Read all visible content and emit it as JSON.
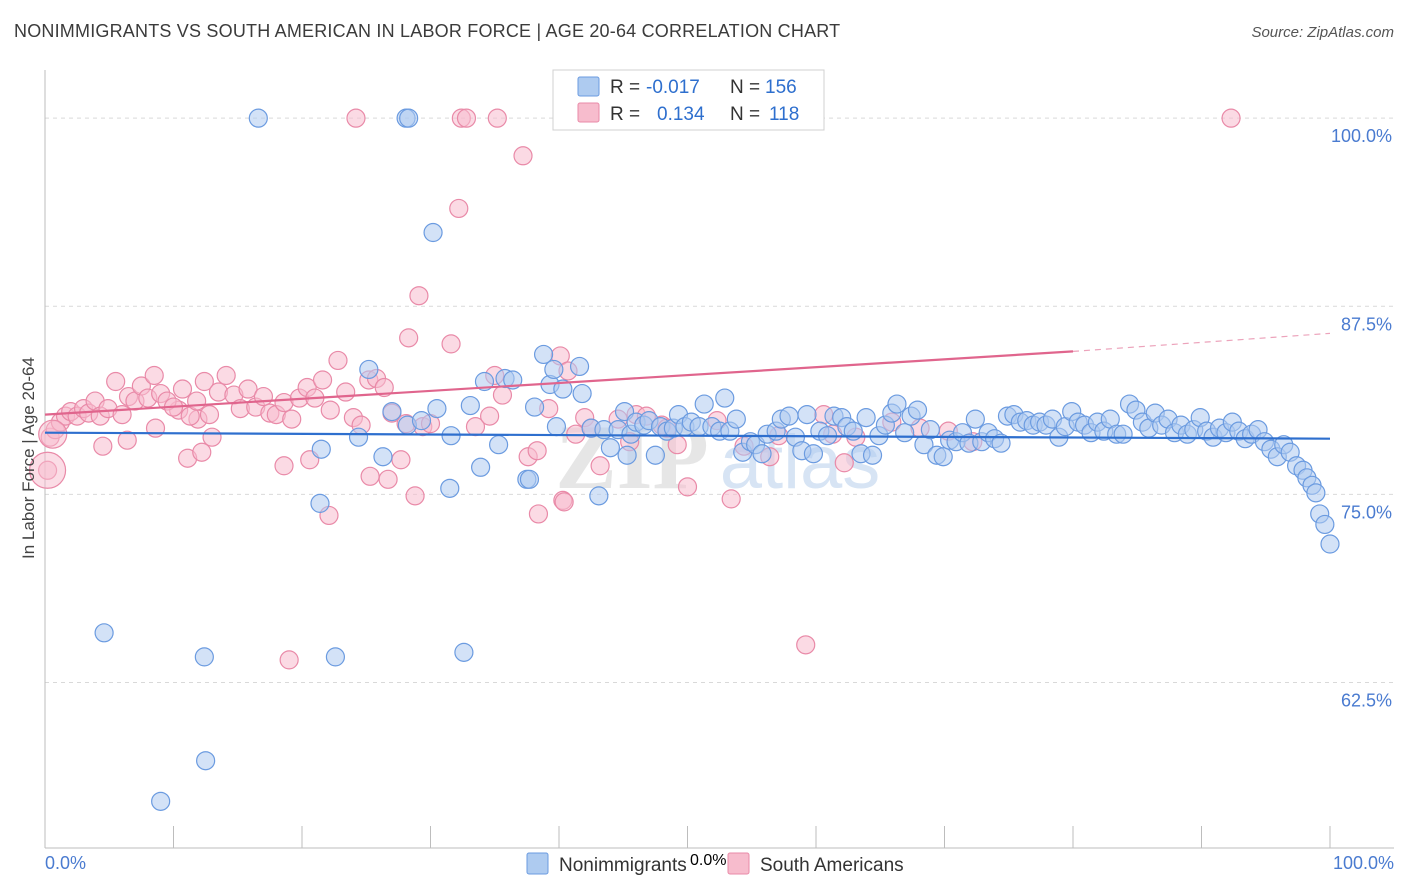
{
  "title": "NONIMMIGRANTS VS SOUTH AMERICAN IN LABOR FORCE | AGE 20-64 CORRELATION CHART",
  "source": "Source: ZipAtlas.com",
  "watermark": {
    "zip": "ZIP",
    "atlas": "atlas"
  },
  "colors": {
    "blue_fill": "#aecbf0",
    "blue_stroke": "#6b9be0",
    "blue_line": "#2e6fce",
    "pink_fill": "#f7bccd",
    "pink_stroke": "#e98aa8",
    "pink_line": "#e0658d",
    "tick_text": "#4a7bd0",
    "grid": "#d9d9d9"
  },
  "legend_box": {
    "rows": [
      {
        "r_label": "R =",
        "r_value": "-0.017",
        "n_label": "N =",
        "n_value": "156"
      },
      {
        "r_label": "R =",
        "r_value": "0.134",
        "n_label": "N =",
        "n_value": "118"
      }
    ]
  },
  "chart_data": {
    "type": "scatter",
    "title": "NONIMMIGRANTS VS SOUTH AMERICAN IN LABOR FORCE | AGE 20-64 CORRELATION CHART",
    "xlabel": "",
    "ylabel": "In Labor Force | Age 20-64",
    "xlim": [
      0,
      100
    ],
    "ylim": [
      51.5,
      103.2
    ],
    "x_tick_labels": [
      "0.0%",
      "100.0%"
    ],
    "y_ticks": [
      100,
      87.5,
      75,
      62.5
    ],
    "y_tick_labels": [
      "100.0%",
      "87.5%",
      "75.0%",
      "62.5%"
    ],
    "grid": true,
    "legend_position": "bottom",
    "series": [
      {
        "name": "Nonimmigrants",
        "R": -0.017,
        "N": 156,
        "trend": {
          "x0": 0,
          "y0": 79.1,
          "x1": 100,
          "y1": 78.7
        },
        "points": [
          [
            16.6,
            100
          ],
          [
            28.1,
            100
          ],
          [
            28.3,
            100
          ],
          [
            30.2,
            92.4
          ],
          [
            4.6,
            65.8
          ],
          [
            12.4,
            64.2
          ],
          [
            22.6,
            64.2
          ],
          [
            32.6,
            64.5
          ],
          [
            12.5,
            57.3
          ],
          [
            9.0,
            54.6
          ],
          [
            21.5,
            78.0
          ],
          [
            21.4,
            74.4
          ],
          [
            24.4,
            78.8
          ],
          [
            25.2,
            83.3
          ],
          [
            26.3,
            77.5
          ],
          [
            27.0,
            80.5
          ],
          [
            28.2,
            79.6
          ],
          [
            29.3,
            79.9
          ],
          [
            30.5,
            80.7
          ],
          [
            31.5,
            75.4
          ],
          [
            31.6,
            78.9
          ],
          [
            33.1,
            80.9
          ],
          [
            33.9,
            76.8
          ],
          [
            34.2,
            82.5
          ],
          [
            35.3,
            78.3
          ],
          [
            35.8,
            82.7
          ],
          [
            36.4,
            82.6
          ],
          [
            37.5,
            76.0
          ],
          [
            37.7,
            76.0
          ],
          [
            38.1,
            80.8
          ],
          [
            38.8,
            84.3
          ],
          [
            39.3,
            82.3
          ],
          [
            39.6,
            83.3
          ],
          [
            39.8,
            79.5
          ],
          [
            40.3,
            82.0
          ],
          [
            41.6,
            83.5
          ],
          [
            41.8,
            81.7
          ],
          [
            42.5,
            79.4
          ],
          [
            43.1,
            74.9
          ],
          [
            43.5,
            79.3
          ],
          [
            44.0,
            78.1
          ],
          [
            44.6,
            79.3
          ],
          [
            45.1,
            80.5
          ],
          [
            45.3,
            77.6
          ],
          [
            45.6,
            79.0
          ],
          [
            46.0,
            79.8
          ],
          [
            46.6,
            79.6
          ],
          [
            47.0,
            79.9
          ],
          [
            47.5,
            77.6
          ],
          [
            47.9,
            79.5
          ],
          [
            48.4,
            79.2
          ],
          [
            48.9,
            79.4
          ],
          [
            49.3,
            80.3
          ],
          [
            49.8,
            79.5
          ],
          [
            50.3,
            79.8
          ],
          [
            50.9,
            79.5
          ],
          [
            51.3,
            81.0
          ],
          [
            51.9,
            79.5
          ],
          [
            52.5,
            79.2
          ],
          [
            52.9,
            81.4
          ],
          [
            53.3,
            79.2
          ],
          [
            53.8,
            80.0
          ],
          [
            54.3,
            77.8
          ],
          [
            54.9,
            78.5
          ],
          [
            55.3,
            78.3
          ],
          [
            55.8,
            77.7
          ],
          [
            56.2,
            79.0
          ],
          [
            56.9,
            79.2
          ],
          [
            57.3,
            80.0
          ],
          [
            57.9,
            80.2
          ],
          [
            58.4,
            78.8
          ],
          [
            58.9,
            77.9
          ],
          [
            59.3,
            80.3
          ],
          [
            59.8,
            77.7
          ],
          [
            60.3,
            79.2
          ],
          [
            60.9,
            78.9
          ],
          [
            61.4,
            80.2
          ],
          [
            62.0,
            80.1
          ],
          [
            62.4,
            79.5
          ],
          [
            62.9,
            79.2
          ],
          [
            63.5,
            77.7
          ],
          [
            63.9,
            80.1
          ],
          [
            64.4,
            77.6
          ],
          [
            64.9,
            78.9
          ],
          [
            65.4,
            79.6
          ],
          [
            65.9,
            80.4
          ],
          [
            66.3,
            81.0
          ],
          [
            66.9,
            79.1
          ],
          [
            67.4,
            80.2
          ],
          [
            67.9,
            80.6
          ],
          [
            68.4,
            78.3
          ],
          [
            68.9,
            79.3
          ],
          [
            69.4,
            77.6
          ],
          [
            69.9,
            77.5
          ],
          [
            70.4,
            78.6
          ],
          [
            70.9,
            78.5
          ],
          [
            71.4,
            79.1
          ],
          [
            71.9,
            78.4
          ],
          [
            72.4,
            80.0
          ],
          [
            72.9,
            78.5
          ],
          [
            73.4,
            79.1
          ],
          [
            73.9,
            78.7
          ],
          [
            74.4,
            78.4
          ],
          [
            74.9,
            80.2
          ],
          [
            75.4,
            80.3
          ],
          [
            75.9,
            79.8
          ],
          [
            76.4,
            79.9
          ],
          [
            76.9,
            79.6
          ],
          [
            77.4,
            79.8
          ],
          [
            77.9,
            79.6
          ],
          [
            78.4,
            80.0
          ],
          [
            78.9,
            78.8
          ],
          [
            79.4,
            79.5
          ],
          [
            79.9,
            80.5
          ],
          [
            80.4,
            79.8
          ],
          [
            80.9,
            79.6
          ],
          [
            81.4,
            79.1
          ],
          [
            81.9,
            79.8
          ],
          [
            82.4,
            79.2
          ],
          [
            82.9,
            80.0
          ],
          [
            83.4,
            79.0
          ],
          [
            83.9,
            79.0
          ],
          [
            84.4,
            81.0
          ],
          [
            84.9,
            80.6
          ],
          [
            85.4,
            79.8
          ],
          [
            85.9,
            79.4
          ],
          [
            86.4,
            80.4
          ],
          [
            86.9,
            79.6
          ],
          [
            87.4,
            80.0
          ],
          [
            87.9,
            79.1
          ],
          [
            88.4,
            79.6
          ],
          [
            88.9,
            79.0
          ],
          [
            89.4,
            79.3
          ],
          [
            89.9,
            80.1
          ],
          [
            90.4,
            79.2
          ],
          [
            90.9,
            78.8
          ],
          [
            91.4,
            79.4
          ],
          [
            91.9,
            79.1
          ],
          [
            92.4,
            79.8
          ],
          [
            92.9,
            79.2
          ],
          [
            93.4,
            78.7
          ],
          [
            93.9,
            79.0
          ],
          [
            94.4,
            79.3
          ],
          [
            94.9,
            78.5
          ],
          [
            95.4,
            78.0
          ],
          [
            95.9,
            77.5
          ],
          [
            96.4,
            78.3
          ],
          [
            96.9,
            77.8
          ],
          [
            97.4,
            76.9
          ],
          [
            97.9,
            76.6
          ],
          [
            98.2,
            76.1
          ],
          [
            98.6,
            75.6
          ],
          [
            98.9,
            75.1
          ],
          [
            99.2,
            73.7
          ],
          [
            99.6,
            73.0
          ],
          [
            100.0,
            71.7
          ]
        ]
      },
      {
        "name": "South Americans",
        "R": 0.134,
        "N": 118,
        "trend": {
          "x0": 0,
          "y0": 80.3,
          "x1": 80,
          "y1": 84.5,
          "dash_x1": 100,
          "dash_y1": 85.7
        },
        "points": [
          [
            24.2,
            100
          ],
          [
            32.4,
            100
          ],
          [
            32.8,
            100
          ],
          [
            35.2,
            100
          ],
          [
            92.3,
            100
          ],
          [
            37.2,
            97.5
          ],
          [
            32.2,
            94.0
          ],
          [
            29.1,
            88.2
          ],
          [
            28.3,
            85.4
          ],
          [
            31.6,
            85.0
          ],
          [
            19.0,
            64.0
          ],
          [
            59.2,
            65.0
          ],
          [
            53.4,
            74.7
          ],
          [
            38.4,
            73.7
          ],
          [
            40.3,
            74.6
          ],
          [
            40.4,
            74.5
          ],
          [
            28.8,
            74.9
          ],
          [
            22.1,
            73.6
          ],
          [
            26.7,
            76.0
          ],
          [
            25.3,
            76.2
          ],
          [
            18.6,
            76.9
          ],
          [
            20.6,
            77.3
          ],
          [
            11.1,
            77.4
          ],
          [
            12.2,
            77.8
          ],
          [
            4.5,
            78.2
          ],
          [
            6.4,
            78.6
          ],
          [
            8.6,
            79.4
          ],
          [
            10.4,
            80.6
          ],
          [
            11.9,
            80.0
          ],
          [
            13.0,
            78.8
          ],
          [
            0.2,
            76.6
          ],
          [
            0.4,
            78.8
          ],
          [
            0.8,
            79.3
          ],
          [
            1.2,
            79.8
          ],
          [
            1.6,
            80.2
          ],
          [
            2.0,
            80.5
          ],
          [
            2.5,
            80.2
          ],
          [
            3.0,
            80.7
          ],
          [
            3.4,
            80.4
          ],
          [
            3.9,
            81.2
          ],
          [
            4.3,
            80.2
          ],
          [
            4.9,
            80.7
          ],
          [
            5.5,
            82.5
          ],
          [
            6.0,
            80.3
          ],
          [
            6.5,
            81.5
          ],
          [
            7.0,
            81.2
          ],
          [
            7.5,
            82.2
          ],
          [
            8.0,
            81.4
          ],
          [
            8.5,
            82.9
          ],
          [
            9.0,
            81.7
          ],
          [
            9.5,
            81.2
          ],
          [
            10.0,
            80.8
          ],
          [
            10.7,
            82.0
          ],
          [
            11.3,
            80.2
          ],
          [
            11.8,
            81.2
          ],
          [
            12.4,
            82.5
          ],
          [
            12.8,
            80.3
          ],
          [
            13.5,
            81.8
          ],
          [
            14.1,
            82.9
          ],
          [
            14.7,
            81.6
          ],
          [
            15.2,
            80.7
          ],
          [
            15.8,
            82.0
          ],
          [
            16.4,
            80.8
          ],
          [
            17.0,
            81.5
          ],
          [
            17.5,
            80.4
          ],
          [
            18.0,
            80.3
          ],
          [
            18.6,
            81.1
          ],
          [
            19.2,
            80.0
          ],
          [
            19.8,
            81.4
          ],
          [
            20.4,
            82.1
          ],
          [
            21.0,
            81.4
          ],
          [
            21.6,
            82.6
          ],
          [
            22.2,
            80.6
          ],
          [
            22.8,
            83.9
          ],
          [
            23.4,
            81.8
          ],
          [
            24.0,
            80.1
          ],
          [
            24.6,
            79.6
          ],
          [
            25.2,
            82.6
          ],
          [
            25.8,
            82.7
          ],
          [
            26.4,
            82.1
          ],
          [
            27.0,
            80.4
          ],
          [
            27.7,
            77.3
          ],
          [
            28.1,
            79.7
          ],
          [
            29.4,
            79.5
          ],
          [
            30.0,
            79.7
          ],
          [
            33.5,
            79.5
          ],
          [
            34.6,
            80.2
          ],
          [
            35.0,
            82.9
          ],
          [
            35.6,
            81.6
          ],
          [
            37.6,
            77.5
          ],
          [
            38.3,
            77.9
          ],
          [
            39.2,
            80.7
          ],
          [
            40.1,
            84.2
          ],
          [
            40.7,
            83.2
          ],
          [
            41.3,
            79.0
          ],
          [
            42.0,
            80.1
          ],
          [
            42.5,
            79.4
          ],
          [
            43.2,
            76.9
          ],
          [
            44.6,
            80.0
          ],
          [
            45.5,
            78.5
          ],
          [
            46.0,
            80.3
          ],
          [
            46.8,
            80.2
          ],
          [
            48.0,
            79.6
          ],
          [
            48.4,
            79.4
          ],
          [
            49.2,
            78.3
          ],
          [
            50.0,
            75.5
          ],
          [
            52.3,
            79.9
          ],
          [
            54.4,
            78.2
          ],
          [
            56.4,
            77.5
          ],
          [
            57.1,
            78.9
          ],
          [
            60.6,
            80.3
          ],
          [
            61.3,
            79.0
          ],
          [
            62.2,
            77.1
          ],
          [
            63.1,
            78.8
          ],
          [
            65.9,
            79.8
          ],
          [
            68.1,
            79.4
          ],
          [
            70.3,
            79.2
          ],
          [
            72.2,
            78.5
          ]
        ]
      }
    ]
  }
}
